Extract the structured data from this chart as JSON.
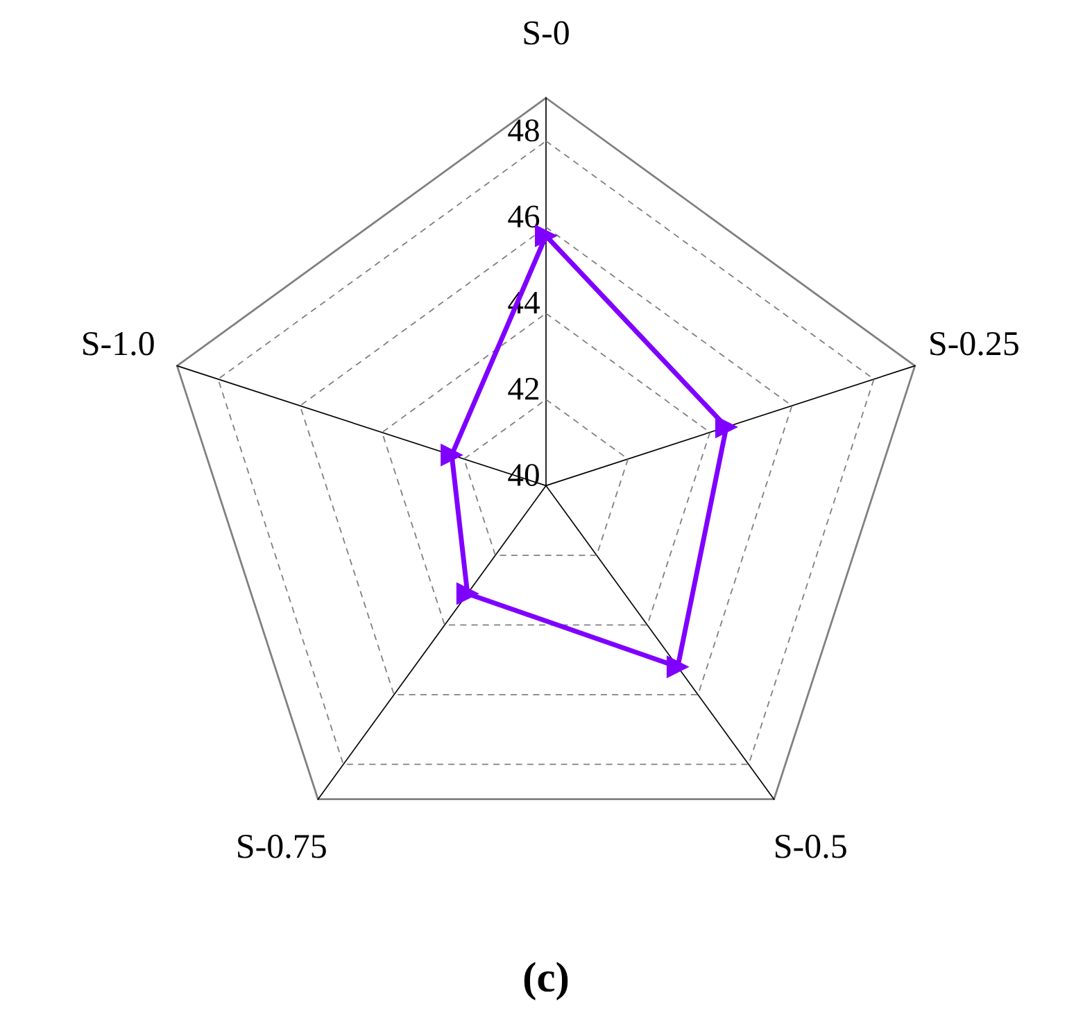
{
  "chart_data": {
    "type": "radar",
    "title": "(c)",
    "categories": [
      "S-0",
      "S-0.25",
      "S-0.5",
      "S-0.75",
      "S-1.0"
    ],
    "series": [
      {
        "color": "#7f00ff",
        "values": [
          45.8,
          44.4,
          45.2,
          43.1,
          42.3
        ]
      }
    ],
    "ylim": [
      40,
      49
    ],
    "yticks": [
      40,
      42,
      44,
      46,
      48
    ],
    "grid": true,
    "marker": "triangle",
    "line_style": "solid"
  }
}
